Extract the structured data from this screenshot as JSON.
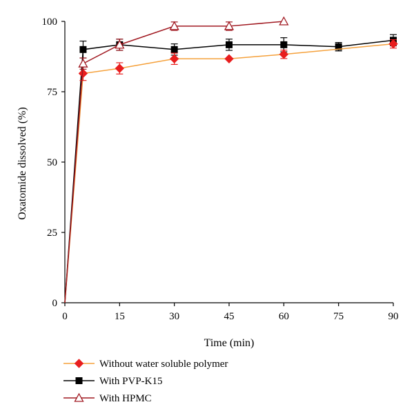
{
  "chart_data": {
    "type": "line",
    "xlabel": "Time (min)",
    "ylabel": "Oxatomide dissolved (%)",
    "xlim": [
      0,
      90
    ],
    "ylim": [
      0,
      100
    ],
    "x_ticks": [
      "0",
      "15",
      "30",
      "45",
      "60",
      "75",
      "90"
    ],
    "y_ticks": [
      "0",
      "25",
      "50",
      "75",
      "100"
    ],
    "grid": false,
    "legend_position": "bottom",
    "series": [
      {
        "name": "Without water soluble polymer",
        "color": "#f5a03a",
        "marker_color": "#e81e1e",
        "marker": "diamond",
        "points": [
          {
            "x": 0,
            "y": 0
          },
          {
            "x": 5,
            "y": 81.5,
            "err": 2.5
          },
          {
            "x": 15,
            "y": 83.3,
            "err": 2.0
          },
          {
            "x": 30,
            "y": 86.7,
            "err": 2.0
          },
          {
            "x": 45,
            "y": 86.7,
            "err": 0
          },
          {
            "x": 60,
            "y": 88.3,
            "err": 1.5
          },
          {
            "x": 90,
            "y": 92.0,
            "err": 1.5
          }
        ]
      },
      {
        "name": "With PVP-K15",
        "color": "#000000",
        "marker_color": "#000000",
        "marker": "square",
        "points": [
          {
            "x": 0,
            "y": 0
          },
          {
            "x": 5,
            "y": 90.0,
            "err": 3.0
          },
          {
            "x": 15,
            "y": 91.7,
            "err": 2.0
          },
          {
            "x": 30,
            "y": 90.0,
            "err": 2.0
          },
          {
            "x": 45,
            "y": 91.7,
            "err": 2.0
          },
          {
            "x": 60,
            "y": 91.7,
            "err": 2.5
          },
          {
            "x": 75,
            "y": 91.0,
            "err": 1.5
          },
          {
            "x": 90,
            "y": 93.3,
            "err": 2.0
          }
        ]
      },
      {
        "name": "With HPMC",
        "color": "#a01820",
        "marker_color": "#a01820",
        "marker": "triangle-open",
        "points": [
          {
            "x": 0,
            "y": 0
          },
          {
            "x": 5,
            "y": 85.0,
            "err": 2.0
          },
          {
            "x": 15,
            "y": 91.7,
            "err": 2.0
          },
          {
            "x": 30,
            "y": 98.3,
            "err": 1.5
          },
          {
            "x": 45,
            "y": 98.3,
            "err": 1.5
          },
          {
            "x": 60,
            "y": 100.0,
            "err": 0
          }
        ]
      }
    ]
  }
}
